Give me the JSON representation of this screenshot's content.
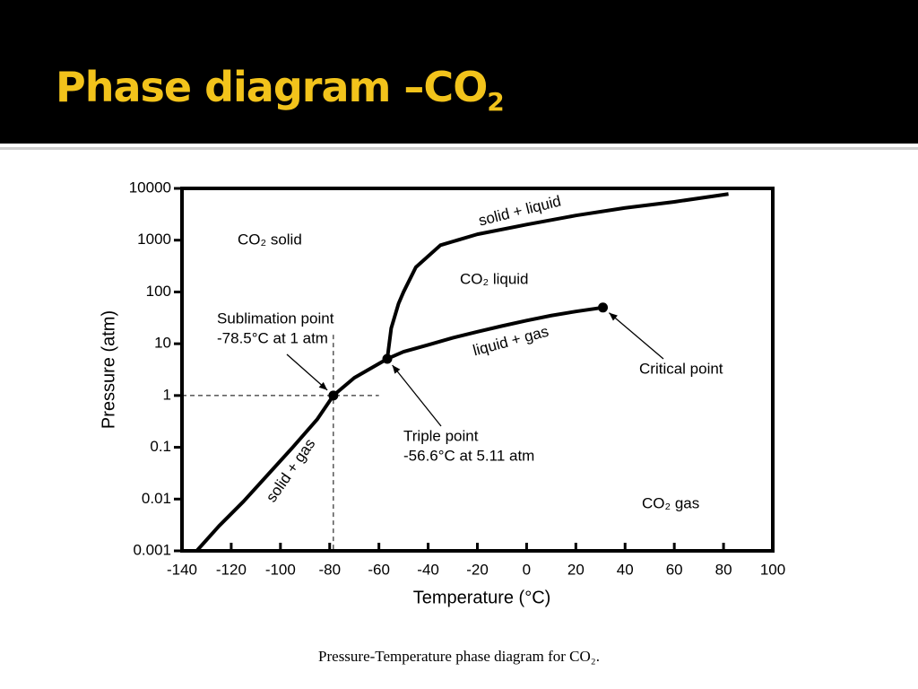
{
  "slide_title": "Phase diagram –CO",
  "slide_title_sub": "2",
  "caption": "Pressure-Temperature phase diagram for CO₂.",
  "chart_data": {
    "type": "line",
    "xlabel": "Temperature (°C)",
    "ylabel": "Pressure (atm)",
    "xlim": [
      -140,
      100
    ],
    "ylim": [
      0.001,
      10000
    ],
    "yscale": "log",
    "xticks": [
      -140,
      -120,
      -100,
      -80,
      -60,
      -40,
      -20,
      0,
      20,
      40,
      60,
      80,
      100
    ],
    "yticks": [
      10000,
      1000,
      100,
      10,
      1,
      0.1,
      0.01,
      0.001
    ],
    "series": [
      {
        "name": "solid + gas",
        "color": "#000000",
        "x": [
          -134,
          -125,
          -115,
          -105,
          -95,
          -85,
          -78.5,
          -70,
          -56.6
        ],
        "values": [
          0.001,
          0.003,
          0.009,
          0.03,
          0.1,
          0.35,
          1,
          2.2,
          5.11
        ]
      },
      {
        "name": "solid + liquid",
        "color": "#000000",
        "x": [
          -56.6,
          -55,
          -52,
          -50,
          -45,
          -35,
          -20,
          0,
          20,
          40,
          60,
          82
        ],
        "values": [
          5.11,
          20,
          60,
          100,
          300,
          800,
          1300,
          2000,
          3000,
          4200,
          5500,
          7800
        ]
      },
      {
        "name": "liquid + gas",
        "color": "#000000",
        "x": [
          -56.6,
          -50,
          -40,
          -30,
          -20,
          -10,
          0,
          10,
          20,
          31
        ],
        "values": [
          5.11,
          7,
          9.5,
          13,
          17,
          22,
          28,
          35,
          42,
          50
        ]
      }
    ],
    "points": [
      {
        "label": [
          "Sublimation point",
          "-78.5°C at 1 atm"
        ],
        "x": -78.5,
        "y": 1
      },
      {
        "label": [
          "Triple point",
          "-56.6°C at 5.11 atm"
        ],
        "x": -56.6,
        "y": 5.11
      },
      {
        "label": [
          "Critical point"
        ],
        "x": 31,
        "y": 50
      }
    ],
    "regions": [
      "CO₂ solid",
      "CO₂ liquid",
      "CO₂ gas"
    ]
  }
}
